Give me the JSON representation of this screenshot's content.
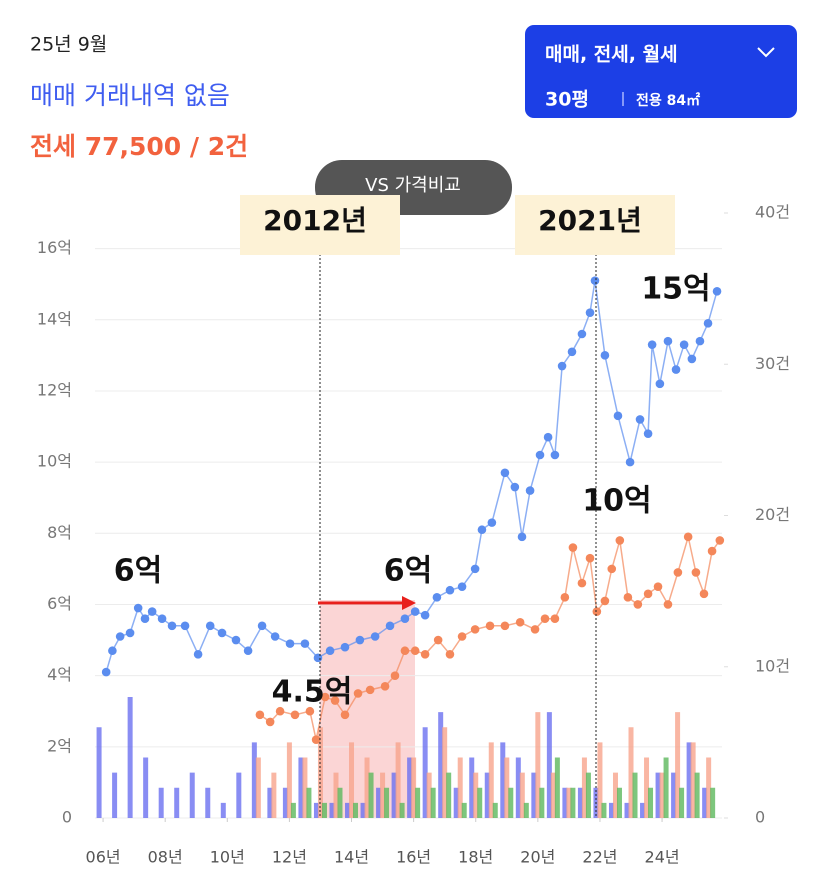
{
  "header": {
    "date": "25년 9월",
    "sale_status": "매매 거래내역 없음",
    "jeonse_status": "전세 77,500 / 2건"
  },
  "filter": {
    "deal_types": "매매, 전세, 월세",
    "size": "30평",
    "area": "전용 84㎡"
  },
  "compare_button": "VS 가격비교",
  "chart_data": {
    "type": "line",
    "xlim": [
      2005.74,
      2025.93
    ],
    "ylim": [
      0,
      17
    ],
    "y2lim": [
      0,
      40
    ],
    "xticks": [
      {
        "value": 2006,
        "label": "06년"
      },
      {
        "value": 2008,
        "label": "08년"
      },
      {
        "value": 2010,
        "label": "10년"
      },
      {
        "value": 2012,
        "label": "12년"
      },
      {
        "value": 2014,
        "label": "14년"
      },
      {
        "value": 2016,
        "label": "16년"
      },
      {
        "value": 2018,
        "label": "18년"
      },
      {
        "value": 2020,
        "label": "20년"
      },
      {
        "value": 2022,
        "label": "22년"
      },
      {
        "value": 2024,
        "label": "24년"
      }
    ],
    "yticks": [
      0,
      {
        "value": 2,
        "label": "2억"
      },
      {
        "value": 4,
        "label": "4억"
      },
      {
        "value": 6,
        "label": "6억"
      },
      {
        "value": 8,
        "label": "8억"
      },
      {
        "value": 10,
        "label": "10억"
      },
      {
        "value": 12,
        "label": "12억"
      },
      {
        "value": 14,
        "label": "14억"
      },
      {
        "value": 16,
        "label": "16억"
      }
    ],
    "y2ticks": [
      0,
      {
        "value": 10,
        "label": "10건"
      },
      {
        "value": 20,
        "label": "20건"
      },
      {
        "value": 30,
        "label": "30건"
      },
      {
        "value": 40,
        "label": "40건"
      }
    ],
    "grid": true,
    "series": [
      {
        "type": "line",
        "color": "#5b8def",
        "x": [
          2006.1,
          2006.3,
          2006.55,
          2006.87,
          2007.13,
          2007.35,
          2007.58,
          2007.9,
          2008.22,
          2008.64,
          2009.06,
          2009.45,
          2009.83,
          2010.28,
          2010.67,
          2011.12,
          2011.54,
          2012.02,
          2012.5,
          2012.92,
          2013.31,
          2013.79,
          2014.27,
          2014.76,
          2015.24,
          2015.72,
          2016.05,
          2016.37,
          2016.75,
          2017.17,
          2017.56,
          2017.98,
          2018.2,
          2018.52,
          2018.94,
          2019.26,
          2019.49,
          2019.75,
          2020.07,
          2020.33,
          2020.55,
          2020.78,
          2021.1,
          2021.42,
          2021.68,
          2021.84,
          2022.16,
          2022.58,
          2022.97,
          2023.29,
          2023.55,
          2023.68,
          2023.93,
          2024.19,
          2024.45,
          2024.71,
          2024.96,
          2025.22,
          2025.48,
          2025.77
        ],
        "values": [
          4.1,
          4.7,
          5.1,
          5.2,
          5.9,
          5.6,
          5.8,
          5.6,
          5.4,
          5.4,
          4.6,
          5.4,
          5.2,
          5.0,
          4.7,
          5.4,
          5.1,
          4.9,
          4.9,
          4.5,
          4.7,
          4.8,
          5.0,
          5.1,
          5.4,
          5.6,
          5.8,
          5.7,
          6.2,
          6.4,
          6.5,
          7.0,
          8.1,
          8.3,
          9.7,
          9.3,
          7.9,
          9.2,
          10.2,
          10.7,
          10.2,
          12.7,
          13.1,
          13.6,
          14.2,
          15.1,
          13.0,
          11.3,
          10.0,
          11.2,
          10.8,
          13.3,
          12.2,
          13.4,
          12.6,
          13.3,
          12.9,
          13.4,
          13.9,
          14.8
        ]
      },
      {
        "type": "line",
        "color": "#f4875a",
        "x": [
          2011.05,
          2011.38,
          2011.7,
          2012.18,
          2012.66,
          2012.86,
          2013.15,
          2013.47,
          2013.79,
          2014.21,
          2014.6,
          2015.08,
          2015.4,
          2015.72,
          2016.05,
          2016.37,
          2016.79,
          2017.17,
          2017.56,
          2017.98,
          2018.46,
          2018.94,
          2019.43,
          2019.91,
          2020.23,
          2020.55,
          2020.87,
          2021.13,
          2021.42,
          2021.68,
          2021.9,
          2022.16,
          2022.38,
          2022.64,
          2022.9,
          2023.22,
          2023.55,
          2023.87,
          2024.19,
          2024.51,
          2024.84,
          2025.09,
          2025.35,
          2025.61,
          2025.86
        ],
        "values": [
          2.9,
          2.7,
          3.0,
          2.9,
          3.0,
          2.2,
          3.4,
          3.3,
          2.9,
          3.5,
          3.6,
          3.7,
          4.0,
          4.7,
          4.7,
          4.6,
          5.0,
          4.6,
          5.1,
          5.3,
          5.4,
          5.4,
          5.5,
          5.3,
          5.6,
          5.6,
          6.2,
          7.6,
          6.6,
          7.3,
          5.8,
          6.1,
          7.0,
          7.8,
          6.2,
          6.0,
          6.3,
          6.5,
          6.0,
          6.9,
          7.9,
          6.9,
          6.3,
          7.5,
          7.8
        ]
      },
      {
        "type": "bar",
        "axis": "y2",
        "color": "#6b70f0",
        "x": [
          2006.0,
          2006.5,
          2007.0,
          2007.5,
          2008.0,
          2008.5,
          2009.0,
          2009.5,
          2010.0,
          2010.5,
          2011.0,
          2011.5,
          2012.0,
          2012.5,
          2013.0,
          2013.5,
          2014.0,
          2014.5,
          2015.0,
          2015.5,
          2016.0,
          2016.5,
          2017.0,
          2017.5,
          2018.0,
          2018.5,
          2019.0,
          2019.5,
          2020.0,
          2020.5,
          2021.0,
          2021.5,
          2022.0,
          2022.5,
          2023.0,
          2023.5,
          2024.0,
          2024.5,
          2025.0,
          2025.5
        ],
        "values": [
          6,
          3,
          8,
          4,
          2,
          2,
          3,
          2,
          1,
          3,
          5,
          2,
          2,
          4,
          1,
          1,
          1,
          1,
          2,
          3,
          4,
          6,
          7,
          2,
          4,
          3,
          5,
          4,
          3,
          7,
          2,
          2,
          2,
          1,
          1,
          1,
          3,
          3,
          5,
          2
        ]
      },
      {
        "type": "bar",
        "axis": "y2",
        "color": "#f7a48c",
        "x": [
          2006.0,
          2006.5,
          2007.0,
          2007.5,
          2008.0,
          2008.5,
          2009.0,
          2009.5,
          2010.0,
          2010.5,
          2011.0,
          2011.5,
          2012.0,
          2012.5,
          2013.0,
          2013.5,
          2014.0,
          2014.5,
          2015.0,
          2015.5,
          2016.0,
          2016.5,
          2017.0,
          2017.5,
          2018.0,
          2018.5,
          2019.0,
          2019.5,
          2020.0,
          2020.5,
          2021.0,
          2021.5,
          2022.0,
          2022.5,
          2023.0,
          2023.5,
          2024.0,
          2024.5,
          2025.0,
          2025.5
        ],
        "values": [
          0,
          0,
          0,
          0,
          0,
          0,
          0,
          0,
          0,
          0,
          4,
          3,
          5,
          4,
          6,
          3,
          5,
          4,
          3,
          5,
          4,
          3,
          6,
          4,
          3,
          5,
          4,
          3,
          7,
          3,
          2,
          4,
          5,
          3,
          6,
          4,
          3,
          7,
          5,
          4
        ]
      },
      {
        "type": "bar",
        "axis": "y2",
        "color": "#5cb85c",
        "x": [
          2006.0,
          2006.5,
          2007.0,
          2007.5,
          2008.0,
          2008.5,
          2009.0,
          2009.5,
          2010.0,
          2010.5,
          2011.0,
          2011.5,
          2012.0,
          2012.5,
          2013.0,
          2013.5,
          2014.0,
          2014.5,
          2015.0,
          2015.5,
          2016.0,
          2016.5,
          2017.0,
          2017.5,
          2018.0,
          2018.5,
          2019.0,
          2019.5,
          2020.0,
          2020.5,
          2021.0,
          2021.5,
          2022.0,
          2022.5,
          2023.0,
          2023.5,
          2024.0,
          2024.5,
          2025.0,
          2025.5
        ],
        "values": [
          0,
          0,
          0,
          0,
          0,
          0,
          0,
          0,
          0,
          0,
          0,
          0,
          1,
          2,
          1,
          2,
          1,
          3,
          2,
          1,
          2,
          2,
          3,
          1,
          2,
          1,
          2,
          1,
          2,
          4,
          2,
          3,
          1,
          2,
          3,
          2,
          4,
          2,
          3,
          2
        ]
      }
    ],
    "annotations": [
      "2012년",
      "2021년",
      "6억",
      "6억",
      "4.5억",
      "10억",
      "15억"
    ]
  }
}
